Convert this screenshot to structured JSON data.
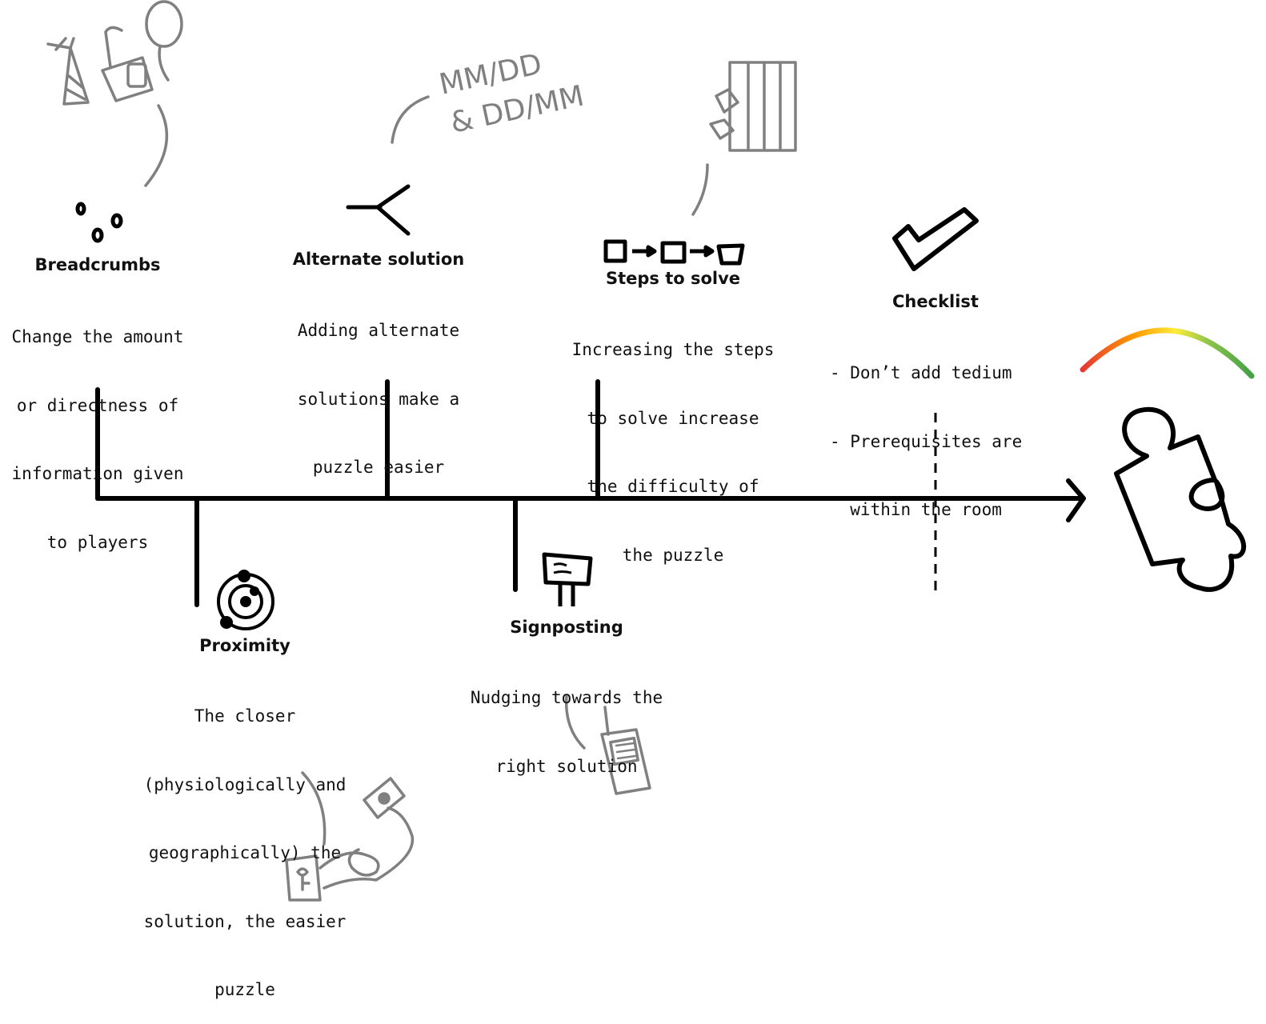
{
  "colors": {
    "ink": "#000000",
    "sketch": "#808080",
    "arc_gradient": [
      "#e53935",
      "#ff9800",
      "#ffeb3b",
      "#8bc34a",
      "#43a047"
    ]
  },
  "items": {
    "breadcrumbs": {
      "icon": "breadcrumb-dots-icon",
      "title": "Breadcrumbs",
      "lines": [
        "Change the amount",
        "or directness of",
        "information given",
        "to players"
      ]
    },
    "alternate": {
      "icon": "fork-path-icon",
      "title": "Alternate solution",
      "lines": [
        "Adding alternate",
        "solutions make a",
        "puzzle easier"
      ],
      "sketch_text": [
        "MM/DD",
        "& DD/MM"
      ]
    },
    "steps": {
      "icon": "steps-chain-icon",
      "title": "Steps to solve",
      "lines": [
        "Increasing the steps",
        "to solve increase",
        "the difficulty of",
        "the puzzle"
      ]
    },
    "checklist": {
      "icon": "checkmark-icon",
      "title": "Checklist",
      "lines": [
        "- Don’t add tedium",
        "- Prerequisites are",
        "  within the room"
      ]
    },
    "proximity": {
      "icon": "orbit-icon",
      "title": "Proximity",
      "lines": [
        "The closer",
        "(physiologically and",
        "geographically) the",
        "solution, the easier",
        "puzzle"
      ]
    },
    "signposting": {
      "icon": "signpost-icon",
      "title": "Signposting",
      "lines": [
        "Nudging towards the",
        "right solution"
      ]
    }
  }
}
